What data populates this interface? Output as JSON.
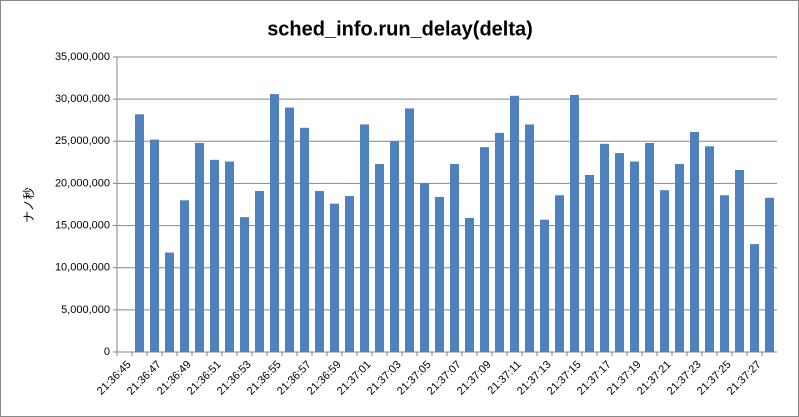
{
  "chart_data": {
    "type": "bar",
    "title": "sched_info.run_delay(delta)",
    "y_label": "ナノ秒",
    "categories": [
      "21:36:45",
      null,
      "21:36:47",
      null,
      "21:36:49",
      null,
      "21:36:51",
      null,
      "21:36:53",
      null,
      "21:36:55",
      null,
      "21:36:57",
      null,
      "21:36:59",
      null,
      "21:37:01",
      null,
      "21:37:03",
      null,
      "21:37:05",
      null,
      "21:37:07",
      null,
      "21:37:09",
      null,
      "21:37:11",
      null,
      "21:37:13",
      null,
      "21:37:15",
      null,
      "21:37:17",
      null,
      "21:37:19",
      null,
      "21:37:21",
      null,
      "21:37:23",
      null,
      "21:37:25",
      null,
      "21:37:27",
      null
    ],
    "values": [
      null,
      28200000,
      25200000,
      11800000,
      18000000,
      24800000,
      22800000,
      22600000,
      16000000,
      19100000,
      30600000,
      29000000,
      26600000,
      19100000,
      17600000,
      18500000,
      27000000,
      22300000,
      25000000,
      28900000,
      20000000,
      18400000,
      22300000,
      15900000,
      24300000,
      26000000,
      30400000,
      27000000,
      15700000,
      18600000,
      30500000,
      21000000,
      24700000,
      23600000,
      22600000,
      24800000,
      19200000,
      22300000,
      26100000,
      24400000,
      18600000,
      21600000,
      12800000,
      18300000
    ],
    "color": "#4f81bd",
    "ylim": [
      0,
      35000000
    ],
    "yticks": [
      0,
      {
        "value": 5000000,
        "label": "5,000,000"
      },
      {
        "value": 10000000,
        "label": "10,000,000"
      },
      {
        "value": 15000000,
        "label": "15,000,000"
      },
      {
        "value": 20000000,
        "label": "20,000,000"
      },
      {
        "value": 25000000,
        "label": "25,000,000"
      },
      {
        "value": 30000000,
        "label": "30,000,000"
      },
      {
        "value": 35000000,
        "label": "35,000,000"
      }
    ],
    "grid": true
  }
}
